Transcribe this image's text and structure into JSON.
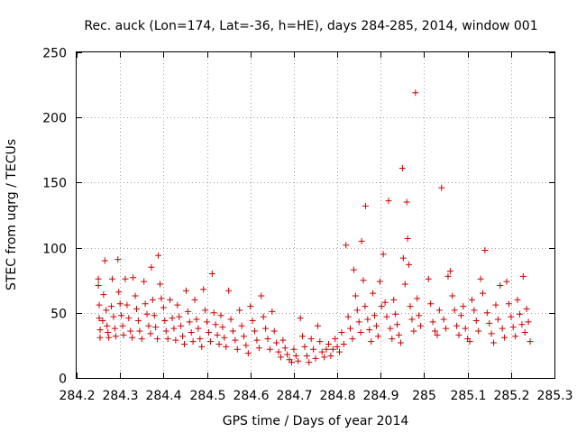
{
  "chart_data": {
    "type": "scatter",
    "title": "Rec. auck (Lon=174, Lat=-36, h=HE), days 284-285, 2014, window 001",
    "xlabel": "GPS time / Days of year 2014",
    "ylabel": "STEC from uqrg / TECUs",
    "xlim": [
      284.2,
      285.3
    ],
    "ylim": [
      0,
      250
    ],
    "xticks": [
      284.2,
      284.3,
      284.4,
      284.5,
      284.6,
      284.7,
      284.8,
      284.9,
      285.0,
      285.1,
      285.2,
      285.3
    ],
    "xtick_labels": [
      "284.2",
      "284.3",
      "284.4",
      "284.5",
      "284.6",
      "284.7",
      "284.8",
      "284.9",
      "285",
      "285.1",
      "285.2",
      "285.3"
    ],
    "yticks": [
      0,
      50,
      100,
      150,
      200,
      250
    ],
    "ytick_labels": [
      "0",
      "50",
      "100",
      "150",
      "200",
      "250"
    ],
    "grid": true,
    "marker": "+",
    "series": [
      {
        "name": "STEC",
        "color": "#cc0000",
        "points": [
          [
            284.25,
            71
          ],
          [
            284.25,
            76
          ],
          [
            284.252,
            56
          ],
          [
            284.252,
            46
          ],
          [
            284.254,
            37
          ],
          [
            284.254,
            31
          ],
          [
            284.26,
            44
          ],
          [
            284.262,
            64
          ],
          [
            284.265,
            90
          ],
          [
            284.268,
            52
          ],
          [
            284.27,
            40
          ],
          [
            284.272,
            35
          ],
          [
            284.274,
            31
          ],
          [
            284.28,
            55
          ],
          [
            284.282,
            76
          ],
          [
            284.285,
            47
          ],
          [
            284.288,
            38
          ],
          [
            284.29,
            32
          ],
          [
            284.295,
            91
          ],
          [
            284.297,
            66
          ],
          [
            284.3,
            57
          ],
          [
            284.303,
            48
          ],
          [
            284.306,
            40
          ],
          [
            284.308,
            33
          ],
          [
            284.312,
            76
          ],
          [
            284.316,
            56
          ],
          [
            284.32,
            46
          ],
          [
            284.324,
            36
          ],
          [
            284.328,
            31
          ],
          [
            284.33,
            77
          ],
          [
            284.335,
            63
          ],
          [
            284.338,
            53
          ],
          [
            284.342,
            44
          ],
          [
            284.345,
            36
          ],
          [
            284.35,
            30
          ],
          [
            284.355,
            74
          ],
          [
            284.358,
            57
          ],
          [
            284.362,
            49
          ],
          [
            284.366,
            40
          ],
          [
            284.37,
            34
          ],
          [
            284.372,
            85
          ],
          [
            284.375,
            60
          ],
          [
            284.379,
            48
          ],
          [
            284.382,
            39
          ],
          [
            284.386,
            30
          ],
          [
            284.388,
            94
          ],
          [
            284.392,
            72
          ],
          [
            284.395,
            61
          ],
          [
            284.4,
            54
          ],
          [
            284.403,
            44
          ],
          [
            284.406,
            36
          ],
          [
            284.41,
            30
          ],
          [
            284.415,
            60
          ],
          [
            284.42,
            46
          ],
          [
            284.424,
            38
          ],
          [
            284.428,
            29
          ],
          [
            284.432,
            56
          ],
          [
            284.436,
            47
          ],
          [
            284.44,
            40
          ],
          [
            284.444,
            32
          ],
          [
            284.448,
            26
          ],
          [
            284.452,
            67
          ],
          [
            284.456,
            51
          ],
          [
            284.46,
            43
          ],
          [
            284.464,
            35
          ],
          [
            284.468,
            28
          ],
          [
            284.472,
            60
          ],
          [
            284.476,
            45
          ],
          [
            284.48,
            38
          ],
          [
            284.484,
            30
          ],
          [
            284.488,
            24
          ],
          [
            284.492,
            68
          ],
          [
            284.496,
            52
          ],
          [
            284.5,
            43
          ],
          [
            284.504,
            35
          ],
          [
            284.508,
            28
          ],
          [
            284.512,
            80
          ],
          [
            284.516,
            50
          ],
          [
            284.52,
            41
          ],
          [
            284.524,
            33
          ],
          [
            284.528,
            26
          ],
          [
            284.532,
            48
          ],
          [
            284.536,
            39
          ],
          [
            284.54,
            31
          ],
          [
            284.544,
            24
          ],
          [
            284.55,
            67
          ],
          [
            284.555,
            45
          ],
          [
            284.56,
            36
          ],
          [
            284.565,
            29
          ],
          [
            284.57,
            22
          ],
          [
            284.575,
            52
          ],
          [
            284.58,
            40
          ],
          [
            284.585,
            32
          ],
          [
            284.59,
            25
          ],
          [
            284.595,
            19
          ],
          [
            284.6,
            55
          ],
          [
            284.605,
            44
          ],
          [
            284.61,
            36
          ],
          [
            284.615,
            29
          ],
          [
            284.62,
            23
          ],
          [
            284.625,
            63
          ],
          [
            284.63,
            47
          ],
          [
            284.635,
            38
          ],
          [
            284.64,
            30
          ],
          [
            284.645,
            22
          ],
          [
            284.65,
            51
          ],
          [
            284.655,
            36
          ],
          [
            284.66,
            27
          ],
          [
            284.665,
            20
          ],
          [
            284.67,
            16
          ],
          [
            284.675,
            29
          ],
          [
            284.68,
            23
          ],
          [
            284.685,
            18
          ],
          [
            284.69,
            14
          ],
          [
            284.695,
            12
          ],
          [
            284.7,
            22
          ],
          [
            284.705,
            17
          ],
          [
            284.71,
            13
          ],
          [
            284.715,
            46
          ],
          [
            284.72,
            32
          ],
          [
            284.725,
            24
          ],
          [
            284.73,
            17
          ],
          [
            284.735,
            12
          ],
          [
            284.74,
            30
          ],
          [
            284.745,
            22
          ],
          [
            284.75,
            15
          ],
          [
            284.755,
            40
          ],
          [
            284.76,
            28
          ],
          [
            284.765,
            20
          ],
          [
            284.77,
            16
          ],
          [
            284.775,
            22
          ],
          [
            284.78,
            26
          ],
          [
            284.785,
            17
          ],
          [
            284.79,
            22
          ],
          [
            284.795,
            30
          ],
          [
            284.8,
            24
          ],
          [
            284.805,
            20
          ],
          [
            284.81,
            35
          ],
          [
            284.815,
            26
          ],
          [
            284.82,
            102
          ],
          [
            284.825,
            47
          ],
          [
            284.83,
            38
          ],
          [
            284.835,
            30
          ],
          [
            284.838,
            83
          ],
          [
            284.842,
            63
          ],
          [
            284.846,
            52
          ],
          [
            284.85,
            43
          ],
          [
            284.854,
            35
          ],
          [
            284.856,
            105
          ],
          [
            284.86,
            75
          ],
          [
            284.864,
            55
          ],
          [
            284.865,
            132
          ],
          [
            284.87,
            45
          ],
          [
            284.874,
            37
          ],
          [
            284.878,
            28
          ],
          [
            284.882,
            65
          ],
          [
            284.886,
            48
          ],
          [
            284.89,
            40
          ],
          [
            284.894,
            32
          ],
          [
            284.898,
            74
          ],
          [
            284.902,
            55
          ],
          [
            284.906,
            95
          ],
          [
            284.91,
            58
          ],
          [
            284.914,
            47
          ],
          [
            284.918,
            136
          ],
          [
            284.922,
            38
          ],
          [
            284.926,
            30
          ],
          [
            284.93,
            60
          ],
          [
            284.934,
            49
          ],
          [
            284.938,
            41
          ],
          [
            284.942,
            33
          ],
          [
            284.946,
            27
          ],
          [
            284.95,
            161
          ],
          [
            284.952,
            92
          ],
          [
            284.956,
            72
          ],
          [
            284.96,
            135
          ],
          [
            284.962,
            107
          ],
          [
            284.965,
            87
          ],
          [
            284.968,
            55
          ],
          [
            284.972,
            45
          ],
          [
            284.976,
            36
          ],
          [
            284.98,
            219
          ],
          [
            284.984,
            61
          ],
          [
            284.988,
            48
          ],
          [
            284.992,
            40
          ],
          [
            285.01,
            76
          ],
          [
            285.015,
            57
          ],
          [
            285.02,
            43
          ],
          [
            285.025,
            36
          ],
          [
            285.03,
            33
          ],
          [
            285.035,
            52
          ],
          [
            285.04,
            146
          ],
          [
            285.045,
            45
          ],
          [
            285.05,
            38
          ],
          [
            285.055,
            78
          ],
          [
            285.06,
            82
          ],
          [
            285.065,
            63
          ],
          [
            285.07,
            52
          ],
          [
            285.075,
            40
          ],
          [
            285.08,
            33
          ],
          [
            285.085,
            48
          ],
          [
            285.09,
            55
          ],
          [
            285.095,
            38
          ],
          [
            285.1,
            30
          ],
          [
            285.105,
            28
          ],
          [
            285.11,
            60
          ],
          [
            285.115,
            52
          ],
          [
            285.12,
            44
          ],
          [
            285.125,
            36
          ],
          [
            285.13,
            76
          ],
          [
            285.135,
            65
          ],
          [
            285.14,
            98
          ],
          [
            285.145,
            50
          ],
          [
            285.15,
            42
          ],
          [
            285.155,
            34
          ],
          [
            285.16,
            27
          ],
          [
            285.165,
            56
          ],
          [
            285.17,
            45
          ],
          [
            285.175,
            71
          ],
          [
            285.18,
            38
          ],
          [
            285.185,
            31
          ],
          [
            285.19,
            74
          ],
          [
            285.195,
            57
          ],
          [
            285.2,
            47
          ],
          [
            285.205,
            39
          ],
          [
            285.21,
            32
          ],
          [
            285.215,
            60
          ],
          [
            285.22,
            49
          ],
          [
            285.225,
            41
          ],
          [
            285.228,
            78
          ],
          [
            285.232,
            35
          ],
          [
            285.236,
            53
          ],
          [
            285.24,
            43
          ],
          [
            285.244,
            28
          ]
        ]
      }
    ]
  }
}
